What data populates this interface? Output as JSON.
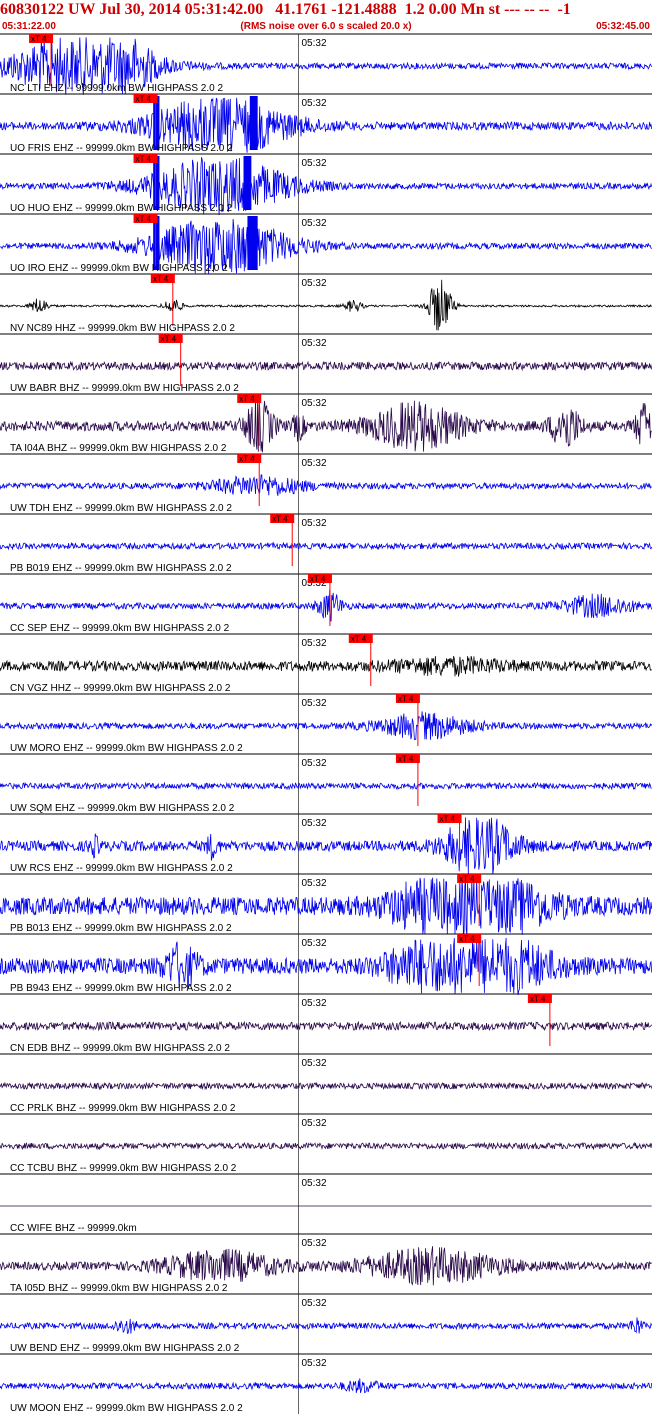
{
  "header": {
    "title": "60830122 UW Jul 30, 2014 05:31:42.00   41.1761 -121.4888  1.2 0.00 Mn st --- -- --  -1",
    "start_time": "05:31:22.00",
    "end_time": "05:32:45.00",
    "note": "(RMS noise over 6.0 s scaled 20.0 x)"
  },
  "colors": {
    "blue": "#0000ee",
    "black": "#000000",
    "purple": "#2a0a4a",
    "pick": "#ff0000",
    "header": "#cc0000"
  },
  "chart_data": {
    "type": "line",
    "title": "60830122 UW Jul 30, 2014 05:31:42.00   41.1761 -121.4888  1.2 0.00 Mn st --- -- --  -1",
    "x_range": [
      "05:31:22.00",
      "05:32:45.00"
    ],
    "x_start_s": 0,
    "x_end_s": 83,
    "time_tick": {
      "label": "05:32",
      "t_s": 38
    },
    "grid": true,
    "pick_label": "xT 4",
    "series": [
      {
        "name": "NC LTI EHZ -- 99999.0km BW  HIGHPASS  2.0  2",
        "color": "blue",
        "noise": 3,
        "pick_s": 6.5,
        "bursts": [
          {
            "t": 10,
            "w": 12,
            "a": 32
          },
          {
            "t": 14,
            "w": 5,
            "a": 40
          }
        ]
      },
      {
        "name": "UO FRIS EHZ -- 99999.0km BW  HIGHPASS  2.0  2",
        "color": "blue",
        "noise": 4,
        "pick_s": 19.8,
        "bursts": [
          {
            "t": 28,
            "w": 12,
            "a": 28
          }
        ],
        "clips": [
          [
            19.5,
            20.3
          ],
          [
            31.8,
            32.8
          ]
        ]
      },
      {
        "name": "UO HUO EHZ -- 99999.0km BW  HIGHPASS  2.0  2",
        "color": "blue",
        "noise": 3,
        "pick_s": 19.8,
        "bursts": [
          {
            "t": 28,
            "w": 12,
            "a": 28
          }
        ],
        "clips": [
          [
            19.5,
            20.3
          ],
          [
            31.0,
            32.0
          ]
        ]
      },
      {
        "name": "UO IRO EHZ -- 99999.0km BW  HIGHPASS  2.0  2",
        "color": "blue",
        "noise": 3,
        "pick_s": 19.8,
        "bursts": [
          {
            "t": 28,
            "w": 12,
            "a": 28
          }
        ],
        "clips": [
          [
            19.5,
            20.3
          ],
          [
            31.5,
            32.8
          ]
        ]
      },
      {
        "name": "NV NC89 HHZ -- 99999.0km BW  HIGHPASS  2.0  2",
        "color": "black",
        "noise": 1,
        "pick_s": 22.0,
        "bursts": [
          {
            "t": 5,
            "w": 1.5,
            "a": 8
          },
          {
            "t": 22,
            "w": 1.5,
            "a": 8
          },
          {
            "t": 45,
            "w": 1.5,
            "a": 6
          },
          {
            "t": 56,
            "w": 2,
            "a": 28
          }
        ]
      },
      {
        "name": "UW BABR BHZ -- 99999.0km BW  HIGHPASS  2.0  2",
        "color": "purple",
        "noise": 4,
        "pick_s": 23.0,
        "bursts": []
      },
      {
        "name": "TA I04A BHZ -- 99999.0km BW  HIGHPASS  2.0  2",
        "color": "purple",
        "noise": 5,
        "pick_s": 33.0,
        "bursts": [
          {
            "t": 33,
            "w": 2.5,
            "a": 24
          },
          {
            "t": 38,
            "w": 1,
            "a": 12
          },
          {
            "t": 53,
            "w": 8,
            "a": 22
          },
          {
            "t": 72,
            "w": 2.5,
            "a": 22
          },
          {
            "t": 82,
            "w": 1.5,
            "a": 22
          }
        ]
      },
      {
        "name": "UW TDH EHZ -- 99999.0km BW  HIGHPASS  2.0  2",
        "color": "blue",
        "noise": 3,
        "pick_s": 33.0,
        "bursts": [
          {
            "t": 33,
            "w": 8,
            "a": 9
          }
        ]
      },
      {
        "name": "PB B019 EHZ -- 99999.0km BW  HIGHPASS  2.0  2",
        "color": "blue",
        "noise": 3,
        "pick_s": 37.2,
        "bursts": []
      },
      {
        "name": "CC SEP EHZ -- 99999.0km BW  HIGHPASS  2.0  2",
        "color": "blue",
        "noise": 3,
        "pick_s": 42.0,
        "bursts": [
          {
            "t": 42,
            "w": 2,
            "a": 14
          },
          {
            "t": 76,
            "w": 6,
            "a": 10
          }
        ]
      },
      {
        "name": "CN VGZ HHZ -- 99999.0km BW  HIGHPASS  2.0  2",
        "color": "black",
        "noise": 5,
        "pick_s": 47.2,
        "bursts": [
          {
            "t": 57,
            "w": 10,
            "a": 6
          }
        ]
      },
      {
        "name": "UW MORO EHZ -- 99999.0km BW  HIGHPASS  2.0  2",
        "color": "blue",
        "noise": 3,
        "pick_s": 53.2,
        "bursts": [
          {
            "t": 54,
            "w": 8,
            "a": 12
          }
        ]
      },
      {
        "name": "UW SQM EHZ -- 99999.0km BW  HIGHPASS  2.0  2",
        "color": "blue",
        "noise": 3,
        "pick_s": 53.2,
        "bursts": []
      },
      {
        "name": "UW RCS EHZ -- 99999.0km BW  HIGHPASS  2.0  2",
        "color": "blue",
        "noise": 5,
        "pick_s": 58.5,
        "bursts": [
          {
            "t": 61,
            "w": 6,
            "a": 30
          },
          {
            "t": 27,
            "w": 1,
            "a": 10
          },
          {
            "t": 12,
            "w": 1,
            "a": 8
          }
        ]
      },
      {
        "name": "PB B013 EHZ -- 99999.0km BW  HIGHPASS  2.0  2",
        "color": "blue",
        "noise": 9,
        "pick_s": 61.0,
        "bursts": [
          {
            "t": 62,
            "w": 10,
            "a": 34
          },
          {
            "t": 55,
            "w": 8,
            "a": 18
          }
        ]
      },
      {
        "name": "PB B943 EHZ -- 99999.0km BW  HIGHPASS  2.0  2",
        "color": "blue",
        "noise": 8,
        "pick_s": 61.0,
        "bursts": [
          {
            "t": 62,
            "w": 10,
            "a": 34
          },
          {
            "t": 23,
            "w": 3,
            "a": 18
          },
          {
            "t": 53,
            "w": 6,
            "a": 16
          }
        ]
      },
      {
        "name": "CN EDB BHZ -- 99999.0km BW  HIGHPASS  2.0  2",
        "color": "purple",
        "noise": 4,
        "pick_s": 70.0,
        "bursts": []
      },
      {
        "name": "CC PRLK BHZ -- 99999.0km BW  HIGHPASS  2.0  2",
        "color": "purple",
        "noise": 3,
        "pick_s": null,
        "bursts": []
      },
      {
        "name": "CC TCBU BHZ -- 99999.0km BW  HIGHPASS  2.0  2",
        "color": "purple",
        "noise": 3,
        "pick_s": null,
        "bursts": []
      },
      {
        "name": "CC WIFE BHZ -- 99999.0km",
        "color": "purple",
        "noise": 0,
        "pick_s": null,
        "bursts": []
      },
      {
        "name": "TA I05D BHZ -- 99999.0km BW  HIGHPASS  2.0  2",
        "color": "purple",
        "noise": 4,
        "pick_s": null,
        "bursts": [
          {
            "t": 28,
            "w": 10,
            "a": 14
          },
          {
            "t": 55,
            "w": 12,
            "a": 16
          }
        ]
      },
      {
        "name": "UW BEND EHZ -- 99999.0km BW  HIGHPASS  2.0  2",
        "color": "blue",
        "noise": 3,
        "pick_s": null,
        "bursts": [
          {
            "t": 16,
            "w": 2,
            "a": 6
          },
          {
            "t": 81,
            "w": 1,
            "a": 8
          }
        ]
      },
      {
        "name": "UW MOON EHZ -- 99999.0km BW  HIGHPASS  2.0  2",
        "color": "blue",
        "noise": 3,
        "pick_s": null,
        "bursts": [
          {
            "t": 46,
            "w": 3,
            "a": 5
          }
        ]
      }
    ]
  }
}
